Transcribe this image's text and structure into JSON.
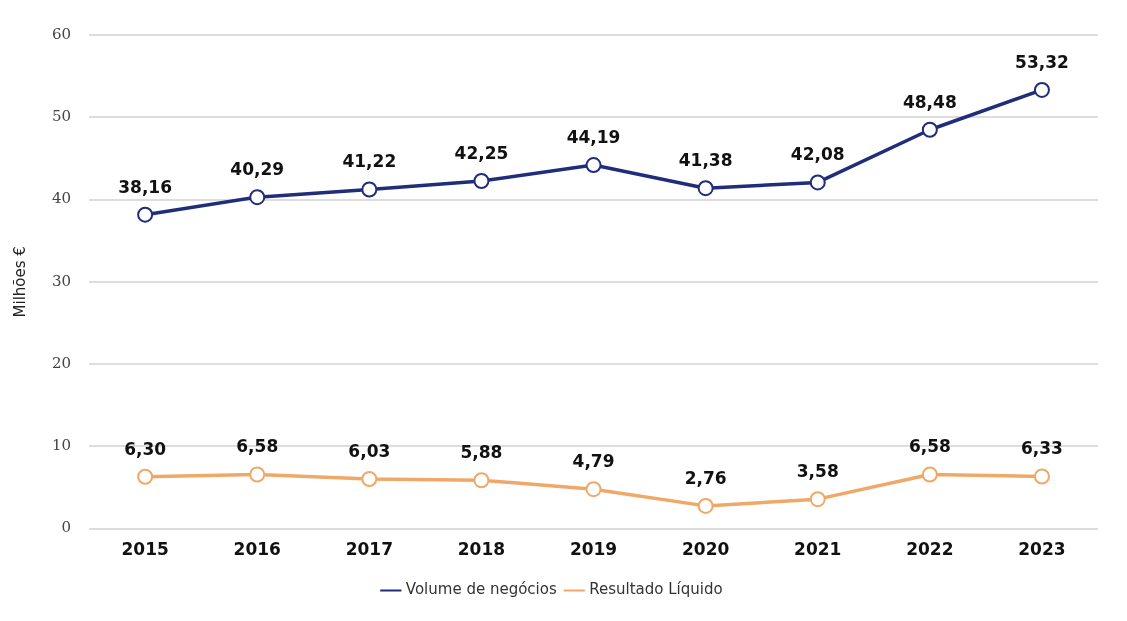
{
  "chart_data": {
    "type": "line",
    "ylabel": "Milhões €",
    "categories": [
      "2015",
      "2016",
      "2017",
      "2018",
      "2019",
      "2020",
      "2021",
      "2022",
      "2023"
    ],
    "series": [
      {
        "name": "Volume de negócios",
        "color": "#1f2d7a",
        "values": [
          38.16,
          40.29,
          41.22,
          42.25,
          44.19,
          41.38,
          42.08,
          48.48,
          53.32
        ],
        "value_labels": [
          "38,16",
          "40,29",
          "41,22",
          "42,25",
          "44,19",
          "41,38",
          "42,08",
          "48,48",
          "53,32"
        ]
      },
      {
        "name": "Resultado Líquido",
        "color": "#f0a868",
        "values": [
          6.3,
          6.58,
          6.03,
          5.88,
          4.79,
          2.76,
          3.58,
          6.58,
          6.33
        ],
        "value_labels": [
          "6,30",
          "6,58",
          "6,03",
          "5,88",
          "4,79",
          "2,76",
          "3,58",
          "6,58",
          "6,33"
        ]
      }
    ],
    "ylim": [
      0,
      60
    ],
    "yticks": [
      0,
      10,
      20,
      30,
      40,
      50,
      60
    ],
    "grid": "y",
    "legend": "bottom",
    "marker": "circle",
    "line_style": "solid"
  }
}
